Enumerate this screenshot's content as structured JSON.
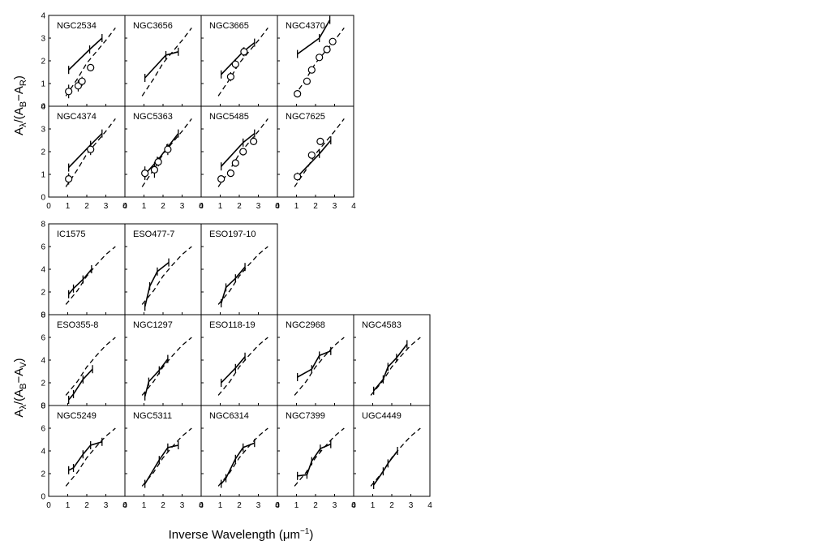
{
  "figure": {
    "xlabel_text": "Inverse Wavelength  (μm",
    "xlabel_sup": "−1",
    "xlabel_close": ")",
    "group_a_ylabel": {
      "pre": "A",
      "sub1": "λ",
      "mid": "/(A",
      "sub2": "B",
      "dash": "−A",
      "sub3": "R",
      "post": ")"
    },
    "group_b_ylabel": {
      "pre": "A",
      "sub1": "λ",
      "mid": "/(A",
      "sub2": "B",
      "dash": "−A",
      "sub3": "V",
      "post": ")"
    }
  },
  "chart_data": [
    {
      "type": "line",
      "group": "A",
      "xlim": [
        0,
        4
      ],
      "ylim": [
        0,
        4
      ],
      "xticks": [
        0,
        1,
        2,
        3,
        4
      ],
      "yticks": [
        0,
        1,
        2,
        3,
        4
      ],
      "xlabel": "Inverse Wavelength (μm⁻¹)",
      "ylabel": "Aλ/(AB−AR)",
      "reference_curve": {
        "style": "dashed",
        "x": [
          0.9,
          1.5,
          2.0,
          2.5,
          3.0,
          3.5
        ],
        "y": [
          0.45,
          1.2,
          1.9,
          2.4,
          2.9,
          3.45
        ]
      },
      "panels": [
        {
          "name": "NGC2534",
          "line": {
            "x": [
              1.05,
              2.15,
              2.8
            ],
            "y": [
              1.6,
              2.5,
              3.0
            ]
          },
          "points": [
            {
              "x": 1.05,
              "y": 0.65,
              "err": 0.3
            },
            {
              "x": 1.55,
              "y": 0.9,
              "err": 0.25
            },
            {
              "x": 1.75,
              "y": 1.1,
              "err": 0.2
            },
            {
              "x": 2.2,
              "y": 1.7,
              "err": 0.15
            }
          ]
        },
        {
          "name": "NGC3656",
          "line": {
            "x": [
              1.05,
              2.15,
              2.8
            ],
            "y": [
              1.25,
              2.25,
              2.4
            ]
          },
          "points": []
        },
        {
          "name": "NGC3665",
          "line": {
            "x": [
              1.05,
              2.2,
              2.8
            ],
            "y": [
              1.4,
              2.4,
              2.8
            ]
          },
          "points": [
            {
              "x": 1.55,
              "y": 1.3,
              "err": 0.2
            },
            {
              "x": 1.8,
              "y": 1.85,
              "err": 0.2
            },
            {
              "x": 2.25,
              "y": 2.4,
              "err": 0.2
            }
          ]
        },
        {
          "name": "NGC4370",
          "line": {
            "x": [
              1.05,
              2.2,
              2.75
            ],
            "y": [
              2.3,
              3.0,
              3.8
            ]
          },
          "points": [
            {
              "x": 1.05,
              "y": 0.55,
              "err": 0.1
            },
            {
              "x": 1.55,
              "y": 1.1,
              "err": 0.1
            },
            {
              "x": 1.8,
              "y": 1.6,
              "err": 0.1
            },
            {
              "x": 2.2,
              "y": 2.15,
              "err": 0.1
            },
            {
              "x": 2.6,
              "y": 2.5,
              "err": 0.1
            },
            {
              "x": 2.9,
              "y": 2.85,
              "err": 0.1
            }
          ]
        },
        {
          "name": "NGC4374",
          "line": {
            "x": [
              1.05,
              2.2,
              2.8
            ],
            "y": [
              1.3,
              2.3,
              2.8
            ]
          },
          "points": [
            {
              "x": 1.05,
              "y": 0.8,
              "err": 0.25
            },
            {
              "x": 2.2,
              "y": 2.1,
              "err": 0.25
            }
          ]
        },
        {
          "name": "NGC5363",
          "line": {
            "x": [
              1.05,
              1.7,
              2.2,
              2.8
            ],
            "y": [
              1.0,
              1.6,
              2.15,
              2.8
            ]
          },
          "points": [
            {
              "x": 1.05,
              "y": 1.05,
              "err": 0.3
            },
            {
              "x": 1.55,
              "y": 1.2,
              "err": 0.35
            },
            {
              "x": 1.75,
              "y": 1.55,
              "err": 0.2
            },
            {
              "x": 2.25,
              "y": 2.1,
              "err": 0.25
            }
          ]
        },
        {
          "name": "NGC5485",
          "line": {
            "x": [
              1.05,
              2.2,
              2.8
            ],
            "y": [
              1.35,
              2.4,
              2.8
            ]
          },
          "points": [
            {
              "x": 1.05,
              "y": 0.8,
              "err": 0.1
            },
            {
              "x": 1.55,
              "y": 1.05,
              "err": 0.1
            },
            {
              "x": 1.8,
              "y": 1.5,
              "err": 0.1
            },
            {
              "x": 2.2,
              "y": 2.0,
              "err": 0.1
            },
            {
              "x": 2.75,
              "y": 2.45,
              "err": 0.1
            }
          ]
        },
        {
          "name": "NGC7625",
          "line": {
            "x": [
              1.05,
              2.2,
              2.8
            ],
            "y": [
              0.9,
              1.9,
              2.5
            ]
          },
          "points": [
            {
              "x": 1.05,
              "y": 0.9,
              "err": 0.1
            },
            {
              "x": 1.8,
              "y": 1.85,
              "err": 0.1
            },
            {
              "x": 2.25,
              "y": 2.45,
              "err": 0.1
            }
          ]
        }
      ]
    },
    {
      "type": "line",
      "group": "B",
      "xlim": [
        0,
        4
      ],
      "ylim": [
        0,
        8
      ],
      "xticks": [
        0,
        1,
        2,
        3,
        4
      ],
      "yticks": [
        0,
        2,
        4,
        6,
        8
      ],
      "xlabel": "Inverse Wavelength (μm⁻¹)",
      "ylabel": "Aλ/(AB−AV)",
      "reference_curve": {
        "style": "dashed",
        "x": [
          0.9,
          1.5,
          2.0,
          2.5,
          3.0,
          3.5
        ],
        "y": [
          0.9,
          2.1,
          3.4,
          4.4,
          5.3,
          6.0
        ]
      },
      "panels": [
        {
          "name": "IC1575",
          "line": {
            "x": [
              1.05,
              1.3,
              1.8,
              2.25
            ],
            "y": [
              1.8,
              2.3,
              3.1,
              4.0
            ]
          }
        },
        {
          "name": "ESO477-7",
          "line": {
            "x": [
              1.05,
              1.3,
              1.7,
              2.3
            ],
            "y": [
              0.7,
              2.5,
              3.8,
              4.6
            ]
          }
        },
        {
          "name": "ESO197-10",
          "line": {
            "x": [
              1.05,
              1.3,
              1.8,
              2.3
            ],
            "y": [
              1.0,
              2.4,
              3.2,
              4.2
            ]
          }
        },
        {
          "name": "ESO355-8",
          "line": {
            "x": [
              1.05,
              1.3,
              1.8,
              2.3
            ],
            "y": [
              0.5,
              1.0,
              2.3,
              3.2
            ]
          }
        },
        {
          "name": "NGC1297",
          "line": {
            "x": [
              1.05,
              1.25,
              1.8,
              2.25
            ],
            "y": [
              0.8,
              2.1,
              3.1,
              4.1
            ]
          }
        },
        {
          "name": "ESO118-19",
          "line": {
            "x": [
              1.05,
              1.8,
              2.3
            ],
            "y": [
              2.0,
              3.3,
              4.3
            ]
          }
        },
        {
          "name": "NGC2968",
          "line": {
            "x": [
              1.05,
              1.8,
              2.2,
              2.8
            ],
            "y": [
              2.5,
              3.2,
              4.4,
              4.8
            ]
          }
        },
        {
          "name": "NGC4583",
          "line": {
            "x": [
              1.05,
              1.55,
              1.8,
              2.25,
              2.8
            ],
            "y": [
              1.3,
              2.3,
              3.4,
              4.2,
              5.4
            ]
          }
        },
        {
          "name": "NGC5249",
          "line": {
            "x": [
              1.05,
              1.3,
              1.8,
              2.2,
              2.8
            ],
            "y": [
              2.3,
              2.5,
              3.7,
              4.5,
              4.8
            ]
          }
        },
        {
          "name": "NGC5311",
          "line": {
            "x": [
              1.05,
              1.8,
              2.25,
              2.8
            ],
            "y": [
              1.1,
              3.2,
              4.3,
              4.5
            ]
          }
        },
        {
          "name": "NGC6314",
          "line": {
            "x": [
              1.05,
              1.3,
              1.8,
              2.2,
              2.8
            ],
            "y": [
              1.1,
              1.6,
              3.3,
              4.3,
              4.7
            ]
          }
        },
        {
          "name": "NGC7399",
          "line": {
            "x": [
              1.05,
              1.55,
              1.8,
              2.25,
              2.8
            ],
            "y": [
              1.8,
              1.9,
              3.1,
              4.2,
              4.6
            ]
          }
        },
        {
          "name": "UGC4449",
          "line": {
            "x": [
              1.05,
              1.55,
              1.8,
              2.3
            ],
            "y": [
              1.0,
              2.2,
              2.9,
              4.0
            ]
          }
        }
      ]
    }
  ]
}
